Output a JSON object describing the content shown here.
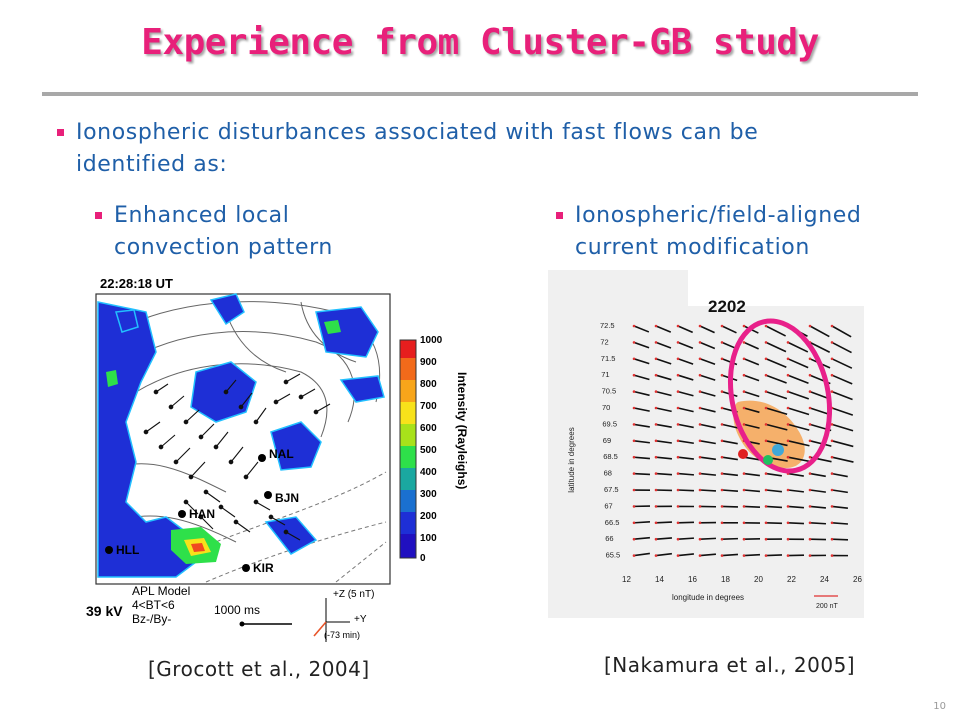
{
  "slide": {
    "title": "Experience from Cluster-GB study",
    "bullet_main_line1": "Ionospheric disturbances associated with fast flows can be",
    "bullet_main_line2": "identified as:",
    "sub_left_line1": "Enhanced local",
    "sub_left_line2": "convection pattern",
    "sub_right_line1": "Ionospheric/field-aligned",
    "sub_right_line2": "current modification",
    "cite_left": "[Grocott et al., 2004]",
    "cite_right": "[Nakamura et al., 2005]",
    "page_number": "10"
  },
  "figure_left": {
    "time": "22:28:18 UT",
    "stations": [
      "NAL",
      "BJN",
      "HAN",
      "HLL",
      "KIR"
    ],
    "colorbar_ticks": [
      "1000",
      "900",
      "800",
      "700",
      "600",
      "500",
      "400",
      "300",
      "200",
      "100",
      "0"
    ],
    "colorbar_label": "Intensity (Rayleighs)",
    "voltage": "39 kV",
    "model_lines": [
      "APL Model",
      "4<BT<6",
      "Bz-/By-"
    ],
    "scale": "1000 ms",
    "imf_labels": [
      "+Z  (5 nT)",
      "+Y",
      "(-73 min)"
    ]
  },
  "figure_right": {
    "time": "2202",
    "ylabel": "latitude in degrees",
    "xlabel": "longitude in degrees",
    "lat_ticks": [
      "72.5",
      "72",
      "71.5",
      "71",
      "70.5",
      "70",
      "69.5",
      "69",
      "68.5",
      "68",
      "67.5",
      "67",
      "66.5",
      "66",
      "65.5"
    ],
    "lon_ticks": [
      "12",
      "14",
      "16",
      "18",
      "20",
      "22",
      "24",
      "26"
    ],
    "scale": "200 nT",
    "colors": {
      "ellipse": "#e8208a",
      "patch": "#f5a85c",
      "vector": "#111111",
      "tip": "#e03030"
    }
  }
}
